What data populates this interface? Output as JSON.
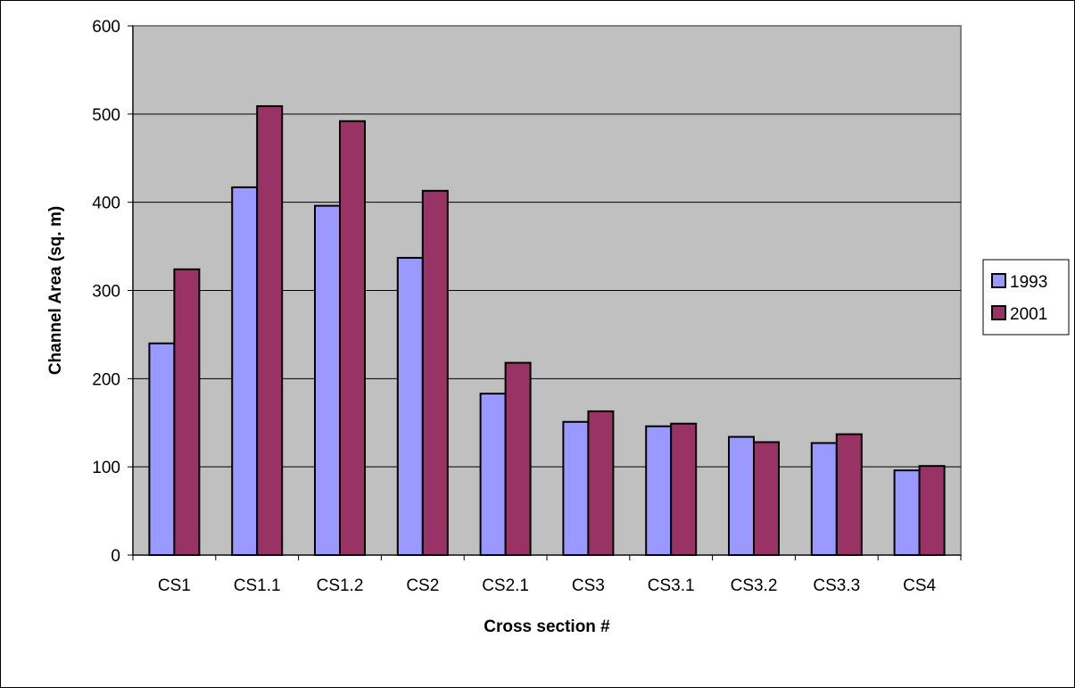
{
  "chart_data": {
    "type": "bar",
    "title": "",
    "xlabel": "Cross section #",
    "ylabel": "Channel Area (sq. m)",
    "ylim": [
      0,
      600
    ],
    "yticks": [
      "0",
      "100",
      "200",
      "300",
      "400",
      "500",
      "600"
    ],
    "grid": true,
    "legend_position": "right",
    "plot_background": "#c0c0c0",
    "categories": [
      "CS1",
      "CS1.1",
      "CS1.2",
      "CS2",
      "CS2.1",
      "CS3",
      "CS3.1",
      "CS3.2",
      "CS3.3",
      "CS4"
    ],
    "series": [
      {
        "name": "1993",
        "color": "#9999ff",
        "values": [
          240,
          417,
          396,
          337,
          183,
          151,
          146,
          134,
          127,
          96
        ]
      },
      {
        "name": "2001",
        "color": "#993366",
        "values": [
          324,
          509,
          492,
          413,
          218,
          163,
          149,
          128,
          137,
          101
        ]
      }
    ]
  }
}
